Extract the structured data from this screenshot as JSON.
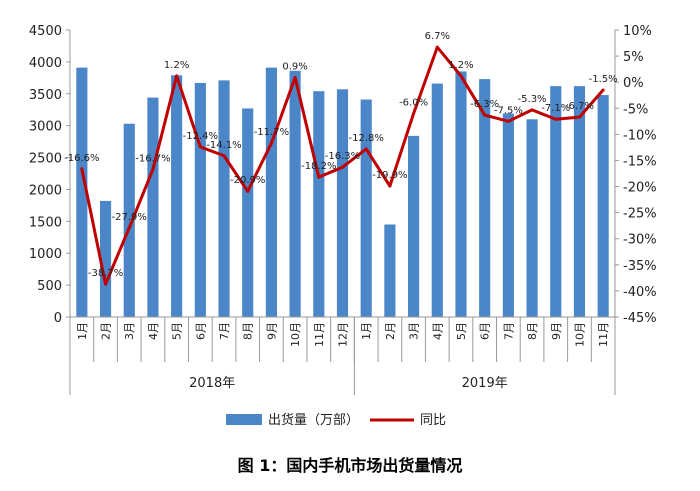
{
  "caption": "图 1：国内手机市场出货量情况",
  "chart_data": {
    "type": "bar",
    "months": [
      "1月",
      "2月",
      "3月",
      "4月",
      "5月",
      "6月",
      "7月",
      "8月",
      "9月",
      "10月",
      "11月",
      "12月",
      "1月",
      "2月",
      "3月",
      "4月",
      "5月",
      "6月",
      "7月",
      "8月",
      "9月",
      "10月",
      "11月"
    ],
    "years": [
      {
        "label": "2018年",
        "count": 12
      },
      {
        "label": "2019年",
        "count": 11
      }
    ],
    "series": [
      {
        "name": "出货量（万部）",
        "type": "bar",
        "axis": "left",
        "color": "#4a86c8",
        "values": [
          3910,
          1820,
          3030,
          3440,
          3790,
          3670,
          3710,
          3270,
          3910,
          3860,
          3540,
          3570,
          3410,
          1450,
          2840,
          3660,
          3850,
          3730,
          3190,
          3100,
          3620,
          3620,
          3480
        ]
      },
      {
        "name": "同比",
        "type": "line",
        "axis": "right",
        "color": "#c00000",
        "values": [
          -16.6,
          -38.7,
          -27.9,
          -16.7,
          1.2,
          -12.4,
          -14.1,
          -20.9,
          -11.7,
          0.9,
          -18.2,
          -16.3,
          -12.8,
          -19.9,
          -6.0,
          6.7,
          1.2,
          -6.3,
          -7.5,
          -5.3,
          -7.1,
          -6.7,
          -1.5
        ],
        "labels": [
          "-16.6%",
          "-38.7%",
          "-27.9%",
          "-16.7%",
          "1.2%",
          "-12.4%",
          "-14.1%",
          "-20.9%",
          "-11.7%",
          "0.9%",
          "-18.2%",
          "-16.3%",
          "-12.8%",
          "-19.9%",
          "-6.0%",
          "6.7%",
          "1.2%",
          "-6.3%",
          "-7.5%",
          "-5.3%",
          "-7.1%",
          "-6.7%",
          "-1.5%"
        ]
      }
    ],
    "y_left": {
      "min": 0,
      "max": 4500,
      "ticks": [
        "0",
        "500",
        "1000",
        "1500",
        "2000",
        "2500",
        "3000",
        "3500",
        "4000",
        "4500"
      ]
    },
    "y_right": {
      "min": -45,
      "max": 10,
      "ticks": [
        "-45%",
        "-40%",
        "-35%",
        "-30%",
        "-25%",
        "-20%",
        "-15%",
        "-10%",
        "-5%",
        "0%",
        "5%",
        "10%"
      ]
    },
    "legend_position": "bottom"
  }
}
